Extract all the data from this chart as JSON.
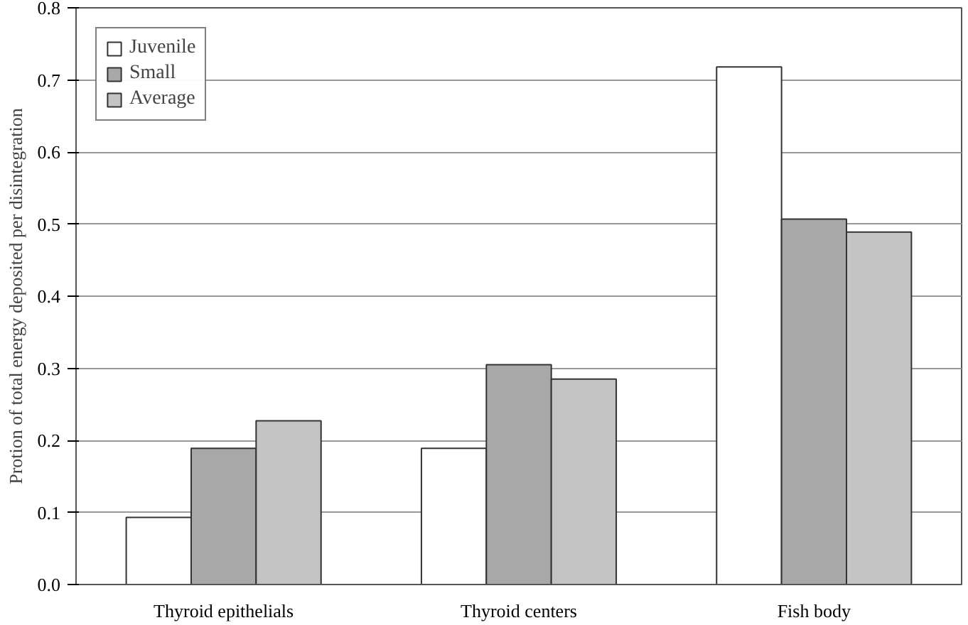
{
  "chart_data": {
    "type": "bar",
    "ylabel": "Protion of total energy deposited per disintegration",
    "categories": [
      "Thyroid epithelials",
      "Thyroid centers",
      "Fish body"
    ],
    "series": [
      {
        "name": "Juvenile",
        "color": "#ffffff",
        "values": [
          0.093,
          0.189,
          0.718
        ]
      },
      {
        "name": "Small",
        "color": "#a8a8a8",
        "values": [
          0.189,
          0.305,
          0.507
        ]
      },
      {
        "name": "Average",
        "color": "#c4c4c4",
        "values": [
          0.227,
          0.285,
          0.489
        ]
      }
    ],
    "ylim": [
      0,
      0.8
    ],
    "yticks": [
      {
        "value": 0,
        "label": "0.0"
      },
      {
        "value": 0.1,
        "label": "0.1"
      },
      {
        "value": 0.2,
        "label": "0.2"
      },
      {
        "value": 0.3,
        "label": "0.3"
      },
      {
        "value": 0.4,
        "label": "0.4"
      },
      {
        "value": 0.5,
        "label": "0.5"
      },
      {
        "value": 0.6,
        "label": "0.6"
      },
      {
        "value": 0.7,
        "label": "0.7"
      },
      {
        "value": 0.8,
        "label": "0.8"
      }
    ],
    "grid": "y",
    "legend": "top left"
  }
}
